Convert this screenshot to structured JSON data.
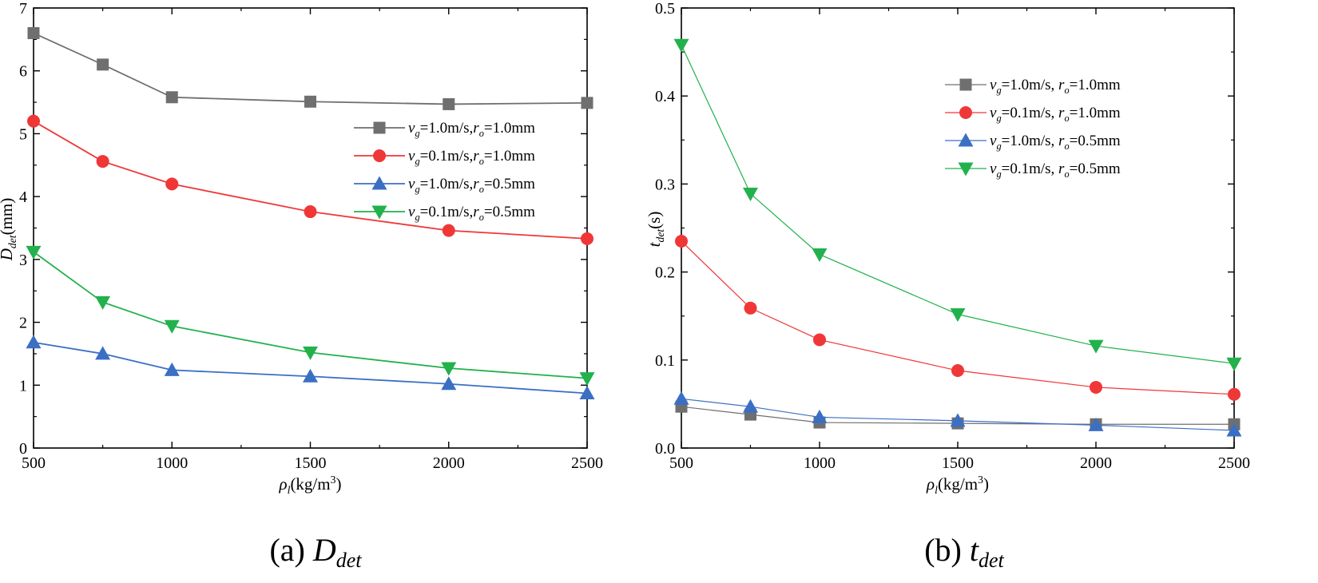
{
  "chart_data": [
    {
      "type": "line",
      "title": "",
      "caption": {
        "prefix": "(a)",
        "symbol": "D",
        "sub": "det"
      },
      "xlabel": {
        "base": "ρ",
        "sub": "l",
        "rest": "(kg/m",
        "sup": "3",
        "end": ")"
      },
      "ylabel": {
        "base": "D",
        "sub": "det",
        "rest": "(mm)"
      },
      "xlim": [
        500,
        2500
      ],
      "ylim": [
        0,
        7
      ],
      "x_ticks": [
        "500",
        "1000",
        "1500",
        "2000",
        "2500"
      ],
      "y_ticks": [
        "0",
        "1",
        "2",
        "3",
        "4",
        "5",
        "6",
        "7"
      ],
      "legend_position": "center-right",
      "x": [
        500,
        750,
        1000,
        1500,
        2000,
        2500
      ],
      "series": [
        {
          "name": "v_g=1.0m/s,r_o=1.0mm",
          "label": {
            "v": "v",
            "vs": "g",
            "mid": "=1.0m/s,",
            "r": "r",
            "rs": "o",
            "end": "=1.0mm"
          },
          "color": "#6f6f6f",
          "marker": "square",
          "values": [
            6.6,
            6.1,
            5.58,
            5.51,
            5.47,
            5.49
          ]
        },
        {
          "name": "v_g=0.1m/s,r_o=1.0mm",
          "label": {
            "v": "v",
            "vs": "g",
            "mid": "=0.1m/s,",
            "r": "r",
            "rs": "o",
            "end": "=1.0mm"
          },
          "color": "#f03737",
          "marker": "circle",
          "values": [
            5.2,
            4.56,
            4.2,
            3.76,
            3.46,
            3.33
          ]
        },
        {
          "name": "v_g=1.0m/s,r_o=0.5mm",
          "label": {
            "v": "v",
            "vs": "g",
            "mid": "=1.0m/s,",
            "r": "r",
            "rs": "o",
            "end": "=0.5mm"
          },
          "color": "#3b6fc4",
          "marker": "triangle-up",
          "values": [
            1.68,
            1.5,
            1.24,
            1.14,
            1.02,
            0.87
          ]
        },
        {
          "name": "v_g=0.1m/s,r_o=0.5mm",
          "label": {
            "v": "v",
            "vs": "g",
            "mid": "=0.1m/s,",
            "r": "r",
            "rs": "o",
            "end": "=0.5mm"
          },
          "color": "#22b14c",
          "marker": "triangle-down",
          "values": [
            3.12,
            2.32,
            1.94,
            1.52,
            1.27,
            1.11
          ]
        }
      ]
    },
    {
      "type": "line",
      "title": "",
      "caption": {
        "prefix": "(b)",
        "symbol": "t",
        "sub": "det"
      },
      "xlabel": {
        "base": "ρ",
        "sub": "l",
        "rest": "(kg/m",
        "sup": "3",
        "end": ")"
      },
      "ylabel": {
        "base": "t",
        "sub": "det",
        "rest": "(s)"
      },
      "xlim": [
        500,
        2500
      ],
      "ylim": [
        0,
        0.5
      ],
      "x_ticks": [
        "500",
        "1000",
        "1500",
        "2000",
        "2500"
      ],
      "y_ticks": [
        "0.0",
        "0.1",
        "0.2",
        "0.3",
        "0.4",
        "0.5"
      ],
      "legend_position": "top-right",
      "x": [
        500,
        750,
        1000,
        1500,
        2000,
        2500
      ],
      "series": [
        {
          "name": "v_g=1.0m/s, r_o=1.0mm",
          "label": {
            "v": "v",
            "vs": "g",
            "mid": "=1.0m/s, ",
            "r": "r",
            "rs": "o",
            "end": "=1.0mm"
          },
          "color": "#6f6f6f",
          "marker": "square",
          "values": [
            0.047,
            0.038,
            0.029,
            0.028,
            0.027,
            0.027
          ]
        },
        {
          "name": "v_g=0.1m/s, r_o=1.0mm",
          "label": {
            "v": "v",
            "vs": "g",
            "mid": "=0.1m/s, ",
            "r": "r",
            "rs": "o",
            "end": "=1.0mm"
          },
          "color": "#f03737",
          "marker": "circle",
          "values": [
            0.235,
            0.159,
            0.123,
            0.088,
            0.069,
            0.061
          ]
        },
        {
          "name": "v_g=1.0m/s, r_o=0.5mm",
          "label": {
            "v": "v",
            "vs": "g",
            "mid": "=1.0m/s, ",
            "r": "r",
            "rs": "o",
            "end": "=0.5mm"
          },
          "color": "#3b6fc4",
          "marker": "triangle-up",
          "values": [
            0.056,
            0.047,
            0.035,
            0.031,
            0.026,
            0.02
          ]
        },
        {
          "name": "v_g=0.1m/s, r_o=0.5mm",
          "label": {
            "v": "v",
            "vs": "g",
            "mid": "=0.1m/s, ",
            "r": "r",
            "rs": "o",
            "end": "=0.5mm"
          },
          "color": "#22b14c",
          "marker": "triangle-down",
          "values": [
            0.458,
            0.289,
            0.22,
            0.152,
            0.116,
            0.096
          ]
        }
      ]
    }
  ]
}
